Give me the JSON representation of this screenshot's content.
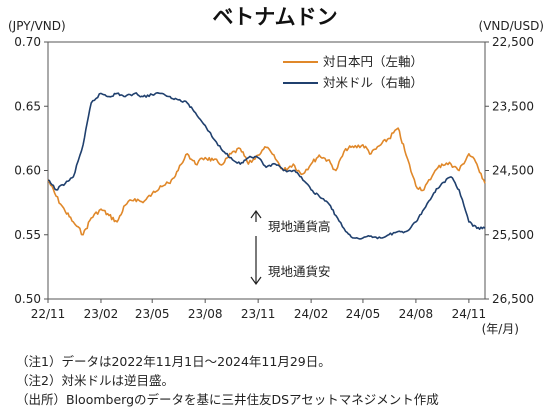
{
  "chart_data": {
    "type": "line",
    "title": "ベトナムドン",
    "left_axis": {
      "unit_label": "(JPY/VND)",
      "ticks": [
        "0.70",
        "0.65",
        "0.60",
        "0.55",
        "0.50"
      ],
      "range": [
        0.5,
        0.7
      ]
    },
    "right_axis": {
      "unit_label": "(VND/USD)",
      "inverted": true,
      "ticks": [
        "22,500",
        "23,500",
        "24,500",
        "25,500",
        "26,500"
      ],
      "range": [
        22500,
        26500
      ]
    },
    "x_axis": {
      "unit_label": "(年/月)",
      "ticks": [
        "22/11",
        "23/02",
        "23/05",
        "23/08",
        "23/11",
        "24/02",
        "24/05",
        "24/08",
        "24/11"
      ],
      "range": [
        "2022-11-01",
        "2024-11-29"
      ]
    },
    "grid": false,
    "legend": "top-right",
    "series": [
      {
        "name": "対日本円（左軸）",
        "axis": "left",
        "color": "#e0882a",
        "points": [
          [
            "2022-11-01",
            0.593
          ],
          [
            "2022-11-15",
            0.58
          ],
          [
            "2022-12-01",
            0.568
          ],
          [
            "2022-12-15",
            0.56
          ],
          [
            "2023-01-01",
            0.55
          ],
          [
            "2023-01-15",
            0.563
          ],
          [
            "2023-02-01",
            0.57
          ],
          [
            "2023-02-15",
            0.565
          ],
          [
            "2023-03-01",
            0.56
          ],
          [
            "2023-03-15",
            0.573
          ],
          [
            "2023-04-01",
            0.578
          ],
          [
            "2023-04-15",
            0.575
          ],
          [
            "2023-05-01",
            0.582
          ],
          [
            "2023-05-15",
            0.588
          ],
          [
            "2023-06-01",
            0.59
          ],
          [
            "2023-06-15",
            0.6
          ],
          [
            "2023-07-01",
            0.613
          ],
          [
            "2023-07-15",
            0.605
          ],
          [
            "2023-08-01",
            0.61
          ],
          [
            "2023-08-15",
            0.608
          ],
          [
            "2023-09-01",
            0.605
          ],
          [
            "2023-09-15",
            0.613
          ],
          [
            "2023-10-01",
            0.617
          ],
          [
            "2023-10-15",
            0.605
          ],
          [
            "2023-11-01",
            0.612
          ],
          [
            "2023-11-15",
            0.618
          ],
          [
            "2023-12-01",
            0.609
          ],
          [
            "2023-12-15",
            0.6
          ],
          [
            "2024-01-01",
            0.605
          ],
          [
            "2024-01-15",
            0.597
          ],
          [
            "2024-02-01",
            0.605
          ],
          [
            "2024-02-15",
            0.612
          ],
          [
            "2024-03-01",
            0.608
          ],
          [
            "2024-03-15",
            0.6
          ],
          [
            "2024-04-01",
            0.617
          ],
          [
            "2024-04-15",
            0.618
          ],
          [
            "2024-05-01",
            0.62
          ],
          [
            "2024-05-15",
            0.613
          ],
          [
            "2024-06-01",
            0.62
          ],
          [
            "2024-06-15",
            0.625
          ],
          [
            "2024-07-01",
            0.633
          ],
          [
            "2024-07-15",
            0.612
          ],
          [
            "2024-08-01",
            0.588
          ],
          [
            "2024-08-15",
            0.585
          ],
          [
            "2024-09-01",
            0.598
          ],
          [
            "2024-09-15",
            0.605
          ],
          [
            "2024-10-01",
            0.605
          ],
          [
            "2024-10-15",
            0.6
          ],
          [
            "2024-11-01",
            0.613
          ],
          [
            "2024-11-15",
            0.605
          ],
          [
            "2024-11-29",
            0.59
          ]
        ]
      },
      {
        "name": "対米ドル（右軸）",
        "axis": "right",
        "color": "#20406e",
        "points": [
          [
            "2022-11-01",
            24650
          ],
          [
            "2022-11-15",
            24800
          ],
          [
            "2022-12-01",
            24700
          ],
          [
            "2022-12-15",
            24600
          ],
          [
            "2023-01-01",
            24100
          ],
          [
            "2023-01-15",
            23450
          ],
          [
            "2023-02-01",
            23300
          ],
          [
            "2023-02-15",
            23350
          ],
          [
            "2023-03-01",
            23300
          ],
          [
            "2023-03-15",
            23350
          ],
          [
            "2023-04-01",
            23300
          ],
          [
            "2023-04-15",
            23350
          ],
          [
            "2023-05-01",
            23320
          ],
          [
            "2023-05-15",
            23300
          ],
          [
            "2023-06-01",
            23350
          ],
          [
            "2023-06-15",
            23400
          ],
          [
            "2023-07-01",
            23450
          ],
          [
            "2023-07-15",
            23600
          ],
          [
            "2023-08-01",
            23800
          ],
          [
            "2023-08-15",
            24000
          ],
          [
            "2023-09-01",
            24200
          ],
          [
            "2023-09-15",
            24300
          ],
          [
            "2023-10-01",
            24400
          ],
          [
            "2023-10-15",
            24300
          ],
          [
            "2023-11-01",
            24300
          ],
          [
            "2023-11-15",
            24450
          ],
          [
            "2023-12-01",
            24400
          ],
          [
            "2023-12-15",
            24500
          ],
          [
            "2024-01-01",
            24500
          ],
          [
            "2024-01-15",
            24600
          ],
          [
            "2024-02-01",
            24800
          ],
          [
            "2024-02-15",
            24900
          ],
          [
            "2024-03-01",
            25000
          ],
          [
            "2024-03-15",
            25200
          ],
          [
            "2024-04-01",
            25450
          ],
          [
            "2024-04-15",
            25550
          ],
          [
            "2024-05-01",
            25550
          ],
          [
            "2024-05-15",
            25520
          ],
          [
            "2024-06-01",
            25550
          ],
          [
            "2024-06-15",
            25500
          ],
          [
            "2024-07-01",
            25450
          ],
          [
            "2024-07-15",
            25450
          ],
          [
            "2024-08-01",
            25300
          ],
          [
            "2024-08-15",
            25100
          ],
          [
            "2024-09-01",
            24850
          ],
          [
            "2024-09-15",
            24700
          ],
          [
            "2024-10-01",
            24600
          ],
          [
            "2024-10-15",
            24800
          ],
          [
            "2024-11-01",
            25300
          ],
          [
            "2024-11-15",
            25400
          ],
          [
            "2024-11-29",
            25400
          ]
        ]
      }
    ],
    "annotations": {
      "up_label": "現地通貨高",
      "down_label": "現地通貨安"
    }
  },
  "notes": [
    "（注1）データは2022年11月1日～2024年11月29日。",
    "（注2）対米ドルは逆目盛。",
    "（出所）Bloombergのデータを基に三井住友DSアセットマネジメント作成"
  ]
}
